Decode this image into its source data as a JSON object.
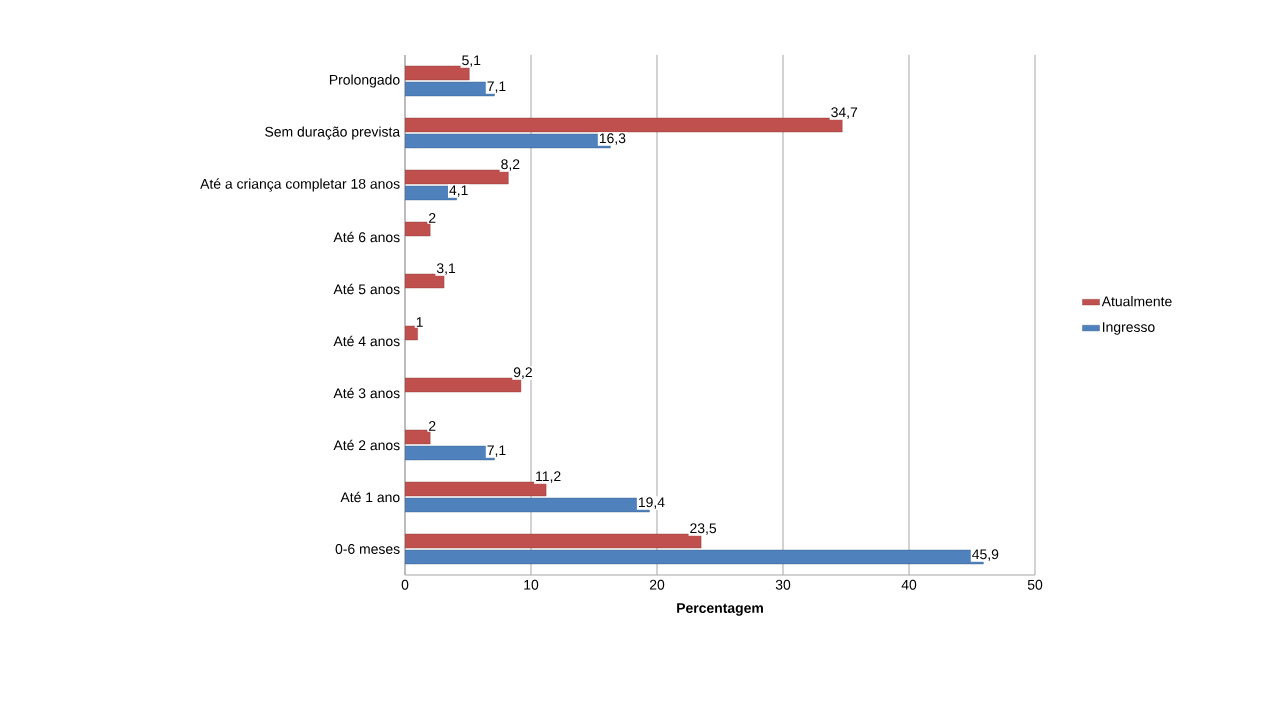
{
  "chart_data": {
    "type": "bar",
    "orientation": "horizontal",
    "categories": [
      "Prolongado",
      "Sem duração prevista",
      "Até a criança completar 18 anos",
      "Até 6 anos",
      "Até 5 anos",
      "Até 4 anos",
      "Até 3 anos",
      "Até 2 anos",
      "Até 1 ano",
      "0-6 meses"
    ],
    "series": [
      {
        "name": "Atualmente",
        "color": "#c0504d",
        "values": [
          5.1,
          34.7,
          8.2,
          2,
          3.1,
          1,
          9.2,
          2,
          11.2,
          23.5
        ],
        "value_labels": [
          "5,1",
          "34,7",
          "8,2",
          "2",
          "3,1",
          "1",
          "9,2",
          "2",
          "11,2",
          "23,5"
        ]
      },
      {
        "name": "Ingresso",
        "color": "#4f81bd",
        "values": [
          7.1,
          16.3,
          4.1,
          null,
          null,
          null,
          null,
          7.1,
          19.4,
          45.9
        ],
        "value_labels": [
          "7,1",
          "16,3",
          "4,1",
          null,
          null,
          null,
          null,
          "7,1",
          "19,4",
          "45,9"
        ]
      }
    ],
    "xlabel": "Percentagem",
    "xlim": [
      0,
      50
    ],
    "xticks": [
      0,
      10,
      20,
      30,
      40,
      50
    ],
    "grid": "x",
    "legend": "right"
  }
}
